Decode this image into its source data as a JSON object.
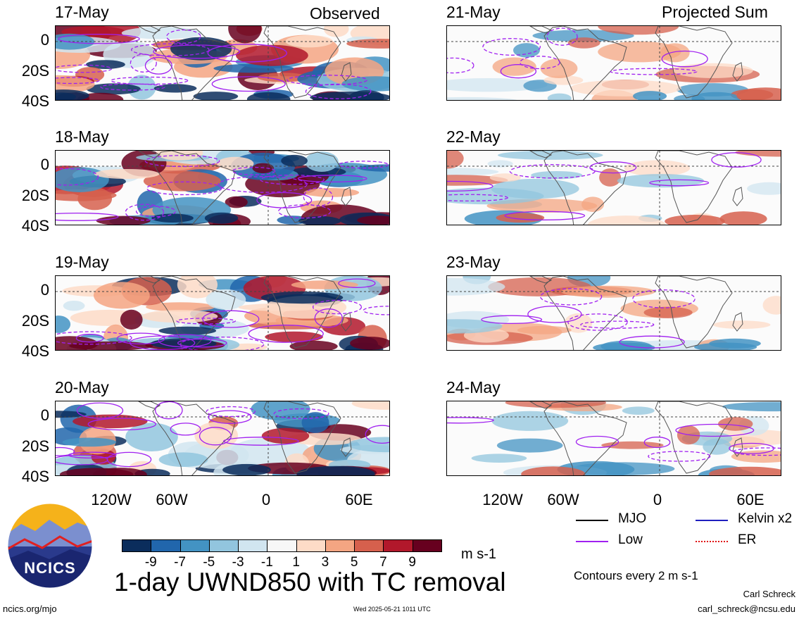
{
  "headers": {
    "observed": "Observed",
    "projected": "Projected Sum"
  },
  "panels": [
    {
      "id": "p17",
      "date": "17-May",
      "col": 0,
      "row": 0,
      "kind": "observed"
    },
    {
      "id": "p18",
      "date": "18-May",
      "col": 0,
      "row": 1,
      "kind": "observed"
    },
    {
      "id": "p19",
      "date": "19-May",
      "col": 0,
      "row": 2,
      "kind": "observed"
    },
    {
      "id": "p20",
      "date": "20-May",
      "col": 0,
      "row": 3,
      "kind": "observed"
    },
    {
      "id": "p21",
      "date": "21-May",
      "col": 1,
      "row": 0,
      "kind": "projected"
    },
    {
      "id": "p22",
      "date": "22-May",
      "col": 1,
      "row": 1,
      "kind": "projected"
    },
    {
      "id": "p23",
      "date": "23-May",
      "col": 1,
      "row": 2,
      "kind": "projected"
    },
    {
      "id": "p24",
      "date": "24-May",
      "col": 1,
      "row": 3,
      "kind": "projected"
    }
  ],
  "lat_ticks": [
    "0",
    "20S",
    "40S"
  ],
  "lon_ticks": [
    "120W",
    "60W",
    "0",
    "60E"
  ],
  "colorbar": {
    "labels": [
      "-9",
      "-7",
      "-5",
      "-3",
      "-1",
      "1",
      "3",
      "5",
      "7",
      "9"
    ],
    "colors": [
      "#0b2d5c",
      "#2166ac",
      "#4393c3",
      "#92c5de",
      "#d1e5f0",
      "#f7f7f7",
      "#fddbc7",
      "#f4a582",
      "#d6604d",
      "#b2182b",
      "#67001f"
    ],
    "units": "m s-1"
  },
  "legend": [
    {
      "label": "MJO",
      "color": "#000000"
    },
    {
      "label": "Kelvin x2",
      "color": "#1f1fbf"
    },
    {
      "label": "Low",
      "color": "#a020f0"
    },
    {
      "label": "ER",
      "color": "#e01010"
    }
  ],
  "contour_note": "Contours every 2 m s-1",
  "title": "1-day UWND850 with TC removal",
  "logo_text": "NCICS",
  "footer": {
    "url": "ncics.org/mjo",
    "timestamp": "Wed 2025-05-21 1011 UTC",
    "author": "Carl Schreck",
    "email": "carl_schreck@ncsu.edu"
  }
}
